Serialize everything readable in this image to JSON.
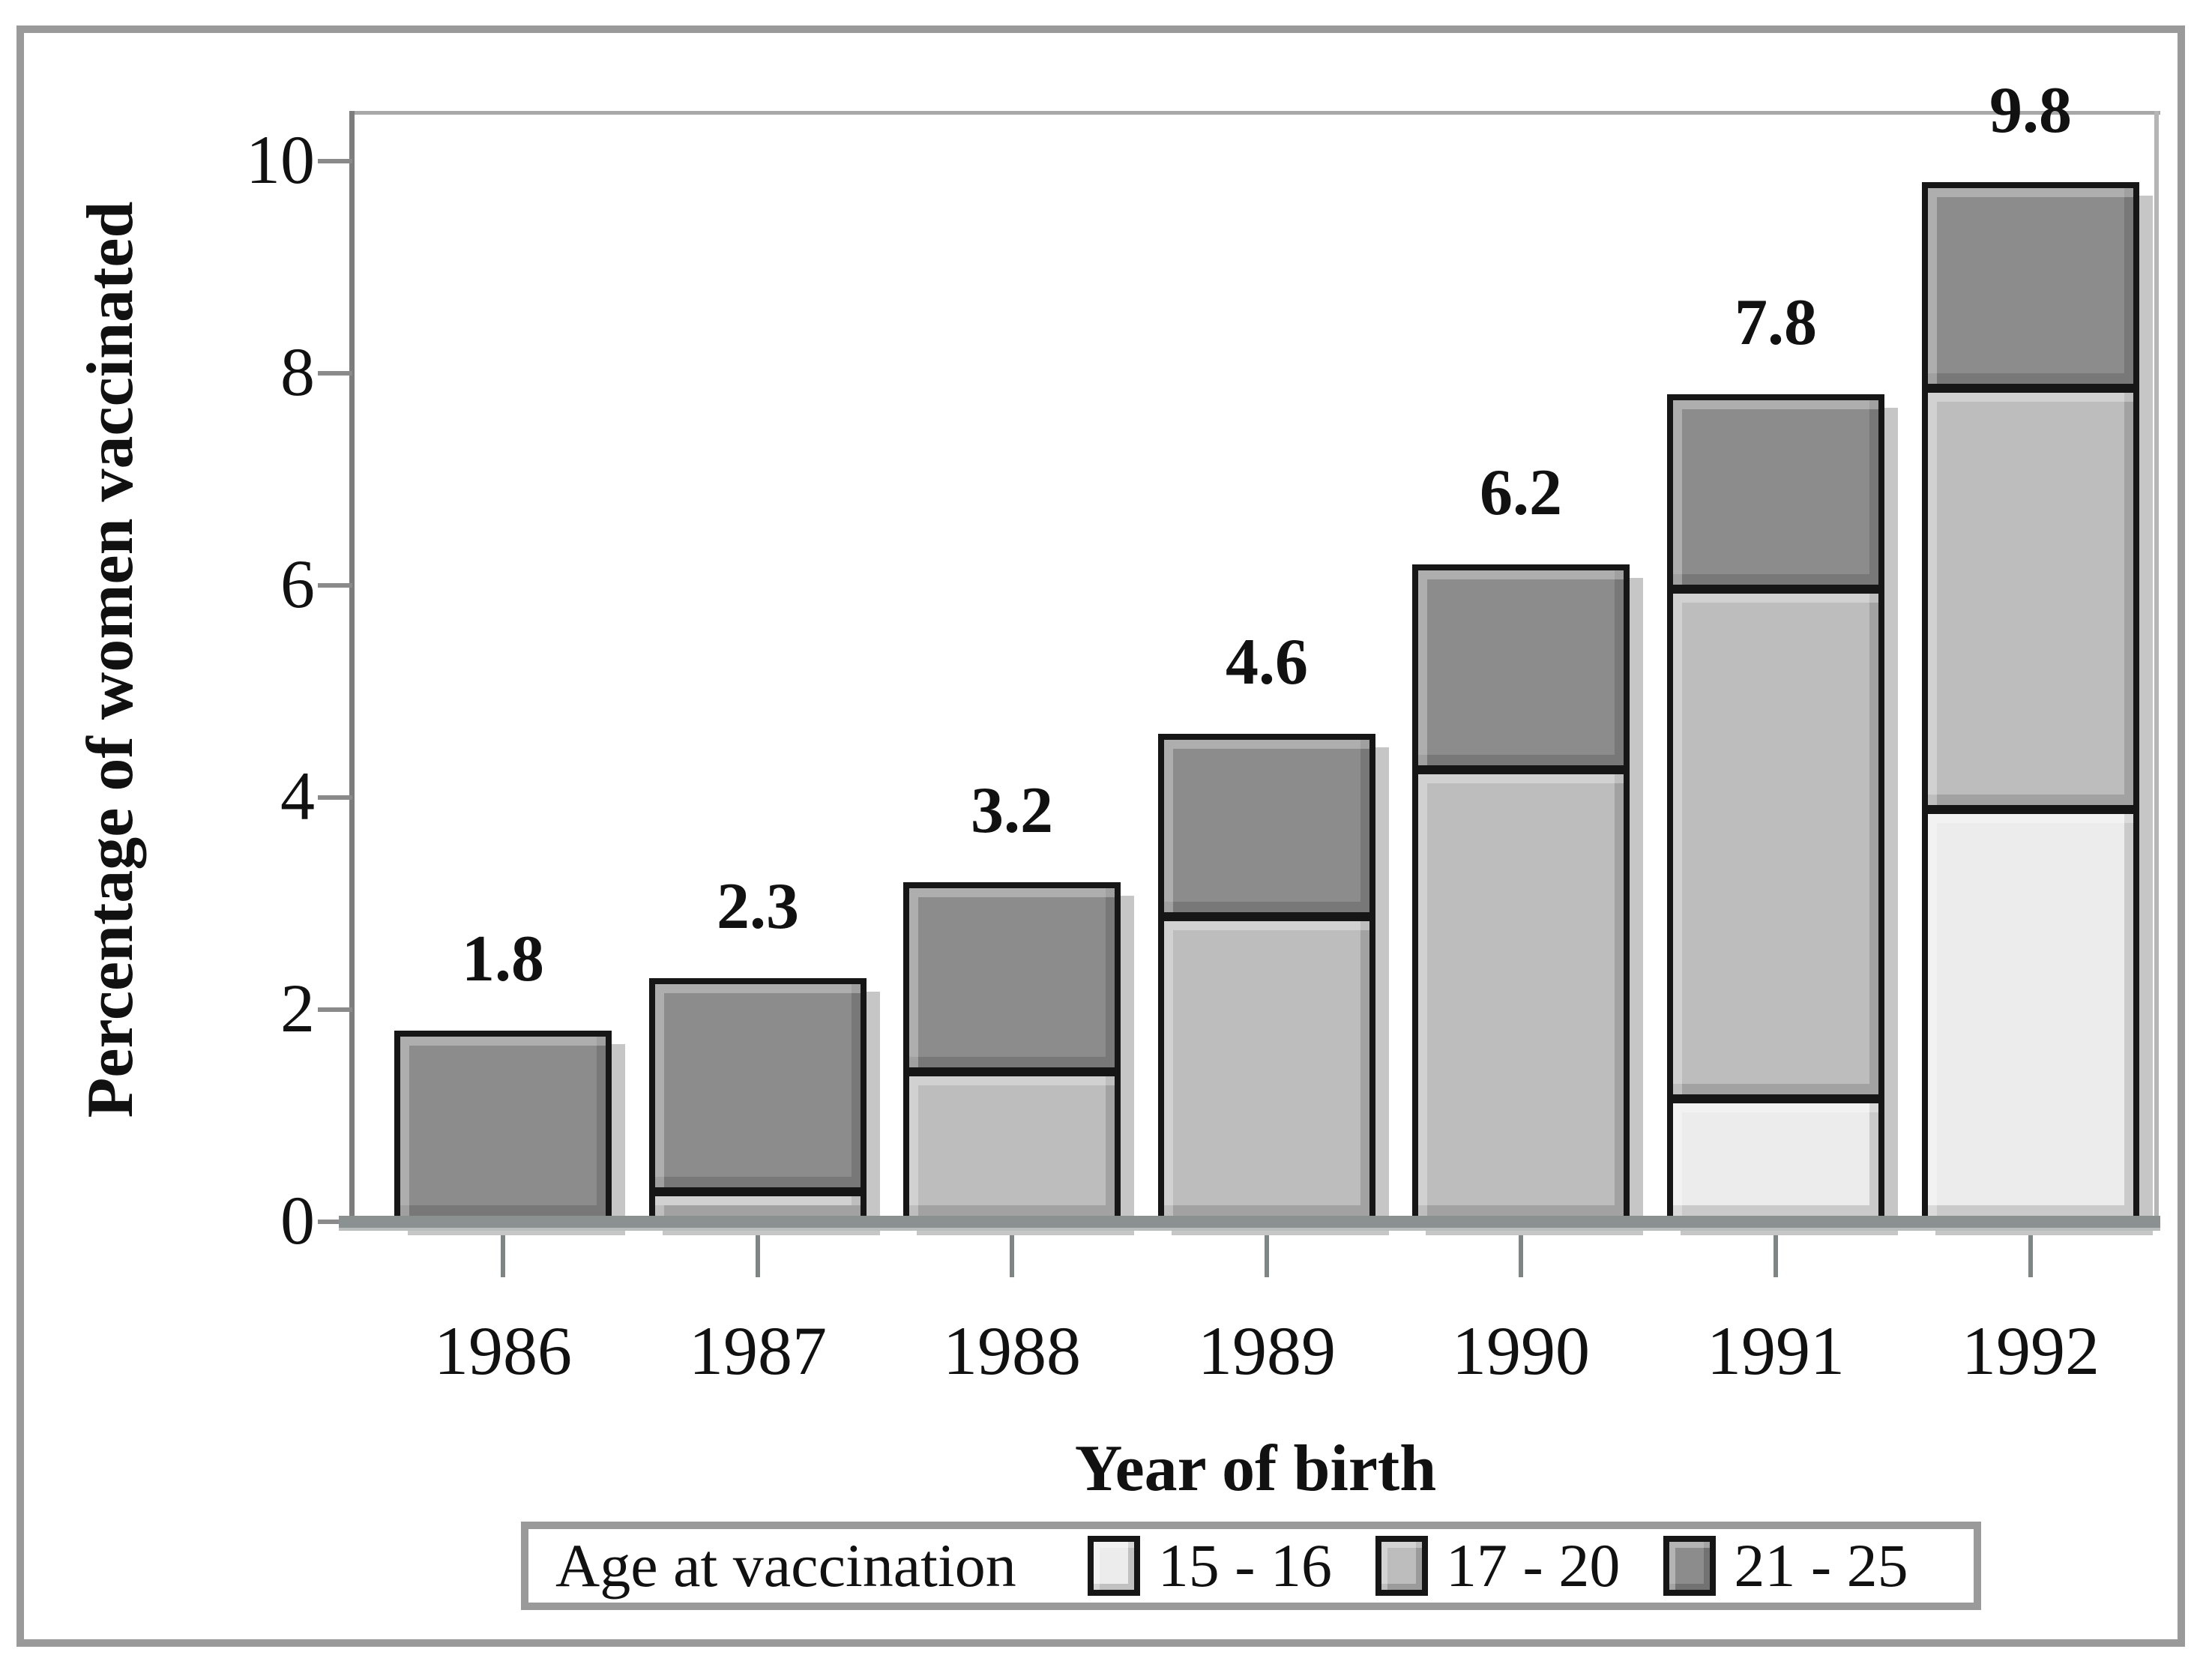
{
  "chart_data": {
    "type": "bar",
    "stacked": true,
    "categories": [
      "1986",
      "1987",
      "1988",
      "1989",
      "1990",
      "1991",
      "1992"
    ],
    "series": [
      {
        "name": "15 - 16",
        "color": "#ececec",
        "values": [
          0,
          0,
          0,
          0,
          0,
          1.1,
          3.9
        ]
      },
      {
        "name": "17 - 20",
        "color": "#bdbdbd",
        "values": [
          0,
          0.2,
          1.4,
          2.9,
          4.3,
          4.9,
          4.0
        ]
      },
      {
        "name": "21 - 25",
        "color": "#8c8c8c",
        "values": [
          1.8,
          2.1,
          1.8,
          1.7,
          1.9,
          1.8,
          1.9
        ]
      }
    ],
    "totals": [
      "1.8",
      "2.3",
      "3.2",
      "4.6",
      "6.2",
      "7.8",
      "9.8"
    ],
    "title": "",
    "xlabel": "Year of birth",
    "ylabel": "Percentage of women vaccinated",
    "yticks": [
      "0",
      "2",
      "4",
      "6",
      "8",
      "10"
    ],
    "ylim": [
      0,
      10.5
    ],
    "grid": false,
    "legend": {
      "title": "Age at vaccination",
      "entries": [
        "15 - 16",
        "17 - 20",
        "21 - 25"
      ],
      "position": "bottom"
    }
  }
}
